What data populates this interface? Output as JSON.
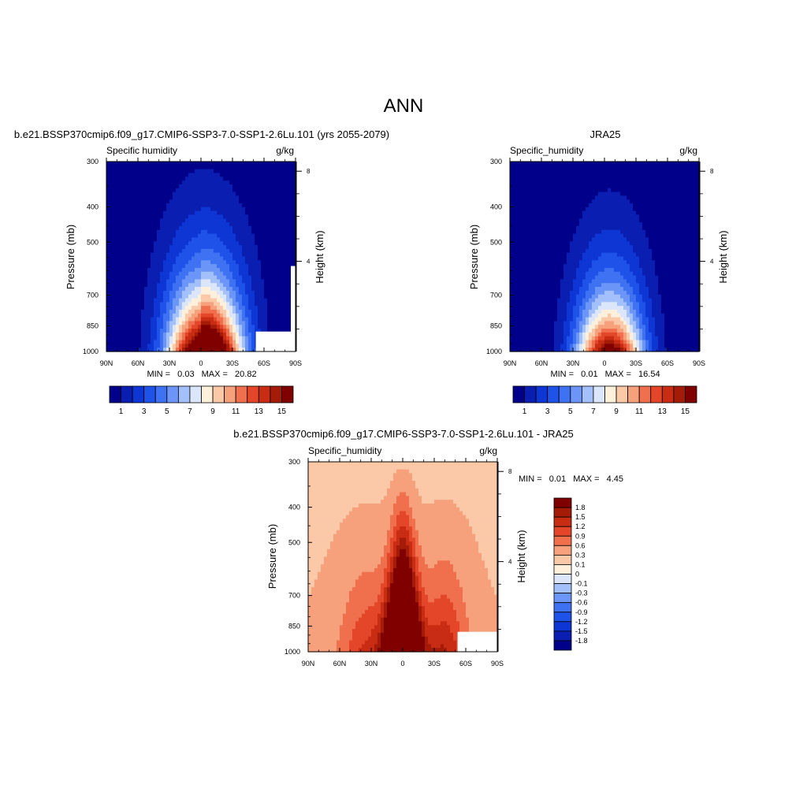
{
  "figure": {
    "title": "ANN"
  },
  "chart_data": [
    {
      "type": "heatmap",
      "panel_title": "b.e21.BSSP370cmip6.f09_g17.CMIP6-SSP3-7.0-SSP1-2.6Lu.101 (yrs 2055-2079)",
      "variable_label": "Specific humidity",
      "units": "g/kg",
      "xlabel": "",
      "ylabel": "Pressure (mb)",
      "ylabel_right": "Height (km)",
      "x_ticks": [
        "90N",
        "60N",
        "30N",
        "0",
        "30S",
        "60S",
        "90S"
      ],
      "y_ticks": [
        "300",
        "400",
        "500",
        "700",
        "850",
        "1000"
      ],
      "height_ticks": [
        "8",
        "4"
      ],
      "stats": {
        "min_label": "MIN =",
        "min": "0.03",
        "max_label": "MAX =",
        "max": "20.82"
      },
      "colorbar": {
        "orientation": "horizontal",
        "tick_labels": [
          "1",
          "3",
          "5",
          "7",
          "9",
          "11",
          "13",
          "15"
        ],
        "colors": [
          "#00008b",
          "#0a1fb1",
          "#0d36d4",
          "#1f52e8",
          "#3f72f2",
          "#6b96f8",
          "#a4c0fa",
          "#dbe6fb",
          "#fff0dc",
          "#fbc8a8",
          "#f6a07c",
          "#f06f4c",
          "#e4462a",
          "#c82d14",
          "#a41c08",
          "#800000"
        ]
      }
    },
    {
      "type": "heatmap",
      "panel_title": "JRA25",
      "variable_label": "Specific_humidity",
      "units": "g/kg",
      "xlabel": "",
      "ylabel": "Pressure (mb)",
      "ylabel_right": "Height (km)",
      "x_ticks": [
        "90N",
        "60N",
        "30N",
        "0",
        "30S",
        "60S",
        "90S"
      ],
      "y_ticks": [
        "300",
        "400",
        "500",
        "700",
        "850",
        "1000"
      ],
      "height_ticks": [
        "8",
        "4"
      ],
      "stats": {
        "min_label": "MIN =",
        "min": "0.01",
        "max_label": "MAX =",
        "max": "16.54"
      },
      "colorbar": {
        "orientation": "horizontal",
        "tick_labels": [
          "1",
          "3",
          "5",
          "7",
          "9",
          "11",
          "13",
          "15"
        ],
        "colors": [
          "#00008b",
          "#0a1fb1",
          "#0d36d4",
          "#1f52e8",
          "#3f72f2",
          "#6b96f8",
          "#a4c0fa",
          "#dbe6fb",
          "#fff0dc",
          "#fbc8a8",
          "#f6a07c",
          "#f06f4c",
          "#e4462a",
          "#c82d14",
          "#a41c08",
          "#800000"
        ]
      }
    },
    {
      "type": "heatmap",
      "panel_title": "b.e21.BSSP370cmip6.f09_g17.CMIP6-SSP3-7.0-SSP1-2.6Lu.101 - JRA25",
      "variable_label": "Specific_humidity",
      "units": "g/kg",
      "xlabel": "",
      "ylabel": "Pressure (mb)",
      "ylabel_right": "Height (km)",
      "x_ticks": [
        "90N",
        "60N",
        "30N",
        "0",
        "30S",
        "60S",
        "90S"
      ],
      "y_ticks": [
        "300",
        "400",
        "500",
        "700",
        "850",
        "1000"
      ],
      "height_ticks": [
        "8",
        "4"
      ],
      "stats": {
        "min_label": "MIN =",
        "min": "0.01",
        "max_label": "MAX =",
        "max": "4.45"
      },
      "colorbar": {
        "orientation": "vertical",
        "tick_labels": [
          "1.8",
          "1.5",
          "1.2",
          "0.9",
          "0.6",
          "0.3",
          "0.1",
          "0",
          "-0.1",
          "-0.3",
          "-0.6",
          "-0.9",
          "-1.2",
          "-1.5",
          "-1.8"
        ],
        "colors": [
          "#800000",
          "#a41c08",
          "#c82d14",
          "#e4462a",
          "#f06f4c",
          "#f6a07c",
          "#fbc8a8",
          "#fff0dc",
          "#dbe6fb",
          "#a4c0fa",
          "#6b96f8",
          "#3f72f2",
          "#1f52e8",
          "#0d36d4",
          "#0a1fb1",
          "#00008b"
        ]
      }
    }
  ]
}
